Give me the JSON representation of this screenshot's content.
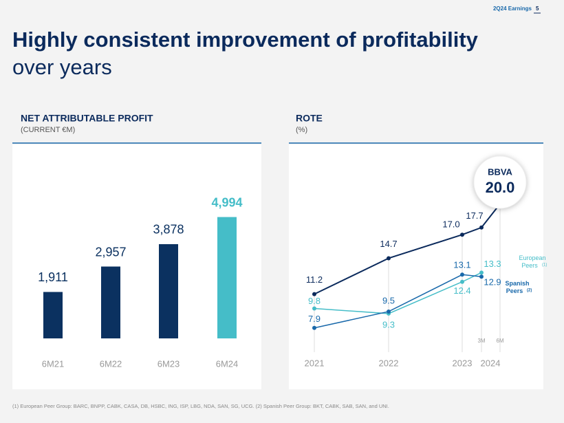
{
  "header": {
    "deck": "2Q24 Earnings",
    "page": "5",
    "title": "Highly consistent improvement of profitability",
    "subtitle": "over years"
  },
  "chart_data": [
    {
      "type": "bar",
      "title": "NET ATTRIBUTABLE PROFIT",
      "subtitle": "(CURRENT €M)",
      "categories": [
        "6M21",
        "6M22",
        "6M23",
        "6M24"
      ],
      "values": [
        1911,
        2957,
        3878,
        4994
      ],
      "value_labels": [
        "1,911",
        "2,957",
        "3,878",
        "4,994"
      ],
      "colors": [
        "#0b3160",
        "#0b3160",
        "#0b3160",
        "#45bdc8"
      ],
      "ylim": [
        0,
        6000
      ]
    },
    {
      "type": "line",
      "title": "ROTE",
      "subtitle": "(%)",
      "categories": [
        "2021",
        "2022",
        "2023",
        "3M",
        "6M"
      ],
      "group_label": "2024",
      "ylim": [
        5,
        25
      ],
      "series": [
        {
          "name": "BBVA",
          "color": "#0b2a5c",
          "values": [
            11.2,
            14.7,
            17.0,
            17.7,
            20.0
          ],
          "value_labels": [
            "11.2",
            "14.7",
            "17.0",
            "17.7",
            "20.0"
          ]
        },
        {
          "name": "European Peers",
          "note": "(1)",
          "color": "#45bdc8",
          "values": [
            9.8,
            9.3,
            12.4,
            13.3,
            null
          ],
          "value_labels": [
            "9.8",
            "9.3",
            "12.4",
            "13.3",
            null
          ]
        },
        {
          "name": "Spanish Peers",
          "note": "(2)",
          "color": "#1868aa",
          "values": [
            7.9,
            9.5,
            13.1,
            12.9,
            null
          ],
          "value_labels": [
            "7.9",
            "9.5",
            "13.1",
            "12.9",
            null
          ]
        }
      ]
    }
  ],
  "footnote": "(1) European Peer Group: BARC, BNPP, CABK, CASA, DB, HSBC, ING, ISP, LBG, NDA, SAN, SG, UCG. (2) Spanish Peer Group: BKT, CABK, SAB, SAN, and UNI."
}
